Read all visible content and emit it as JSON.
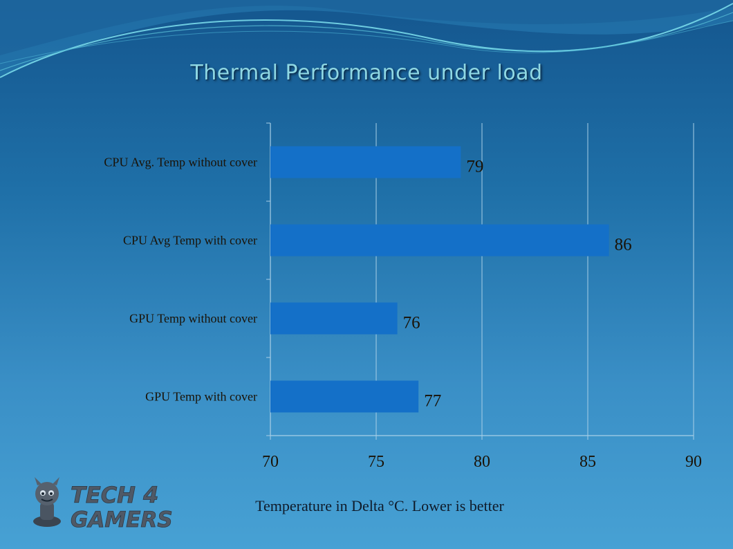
{
  "title": "Thermal Performance under load",
  "caption": "Temperature in Delta °C. Lower is better",
  "logo": {
    "name": "tech4gamers-logo",
    "line1": "TECH 4",
    "line2": "GAMERS"
  },
  "colors": {
    "bar": "#1470c8",
    "title": "#8fd8e3",
    "axis_text": "#1a1206",
    "grid": "#a9cfe6"
  },
  "chart_data": {
    "type": "bar",
    "orientation": "horizontal",
    "categories": [
      "CPU Avg. Temp without cover",
      "CPU Avg Temp with cover",
      "GPU Temp without cover",
      "GPU Temp with cover"
    ],
    "values": [
      79,
      86,
      76,
      77
    ],
    "title": "Thermal Performance under load",
    "xlabel": "Temperature in Delta °C. Lower is better",
    "ylabel": "",
    "xlim": [
      70,
      90
    ],
    "xticks": [
      70,
      75,
      80,
      85,
      90
    ],
    "grid": true,
    "legend": "none",
    "data_labels": true
  }
}
